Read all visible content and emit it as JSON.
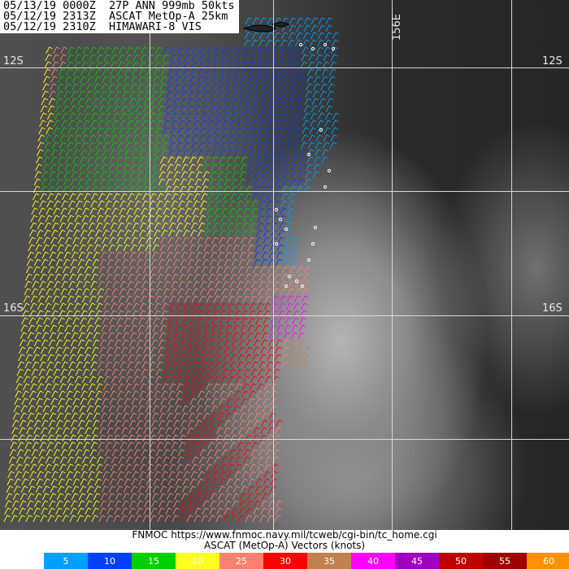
{
  "header": {
    "line1": "05/13/19 0000Z  27P ANN 999mb 50kts",
    "line2": "05/12/19 2313Z  ASCAT MetOp-A 25km",
    "line3": "05/12/19 2310Z  HIMAWARI-8 VIS"
  },
  "grid_labels": {
    "lat_12_left": "12S",
    "lat_12_right": "12S",
    "lat_16_left": "16S",
    "lat_16_right": "16S",
    "lon_156": "156E"
  },
  "footer": {
    "credit": "FNMOC https://www.fnmoc.navy.mil/tcweb/cgi-bin/tc_home.cgi",
    "legend_title": "ASCAT (MetOp-A) Vectors (knots)"
  },
  "legend": [
    {
      "label": "5",
      "color": "#00a0ff"
    },
    {
      "label": "10",
      "color": "#0040ff"
    },
    {
      "label": "15",
      "color": "#00d000"
    },
    {
      "label": "20",
      "color": "#ffff20"
    },
    {
      "label": "25",
      "color": "#ff8070"
    },
    {
      "label": "30",
      "color": "#ff0000"
    },
    {
      "label": "35",
      "color": "#c08050"
    },
    {
      "label": "40",
      "color": "#ff00ff"
    },
    {
      "label": "45",
      "color": "#a000c0"
    },
    {
      "label": "50",
      "color": "#c00000"
    },
    {
      "label": "55",
      "color": "#a00000"
    },
    {
      "label": "60",
      "color": "#ff9000"
    }
  ]
}
